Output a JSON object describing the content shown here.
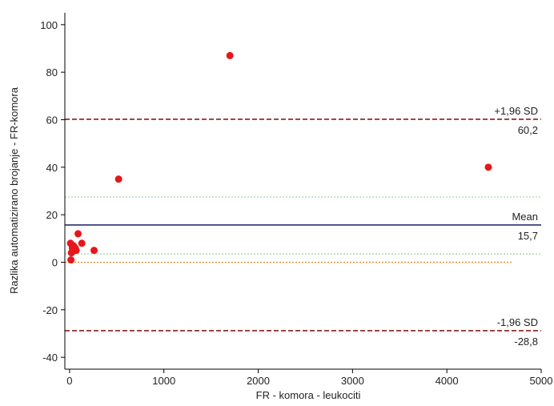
{
  "chart_data": {
    "type": "scatter",
    "title": "",
    "xlabel": "FR - komora - leukociti",
    "ylabel": "Razlika  automatizirano brojanje - FR-komora",
    "xlim": [
      -50,
      5000
    ],
    "ylim": [
      -45,
      105
    ],
    "xticks": [
      0,
      1000,
      2000,
      3000,
      4000,
      5000
    ],
    "yticks": [
      -40,
      -20,
      0,
      20,
      40,
      60,
      80,
      100
    ],
    "grid": false,
    "points": [
      {
        "x": 10,
        "y": 8
      },
      {
        "x": 20,
        "y": 4
      },
      {
        "x": 30,
        "y": 6
      },
      {
        "x": 40,
        "y": 7
      },
      {
        "x": 50,
        "y": 5
      },
      {
        "x": 60,
        "y": 6
      },
      {
        "x": 70,
        "y": 5
      },
      {
        "x": 90,
        "y": 12
      },
      {
        "x": 130,
        "y": 8
      },
      {
        "x": 260,
        "y": 5
      },
      {
        "x": 15,
        "y": 1
      },
      {
        "x": 520,
        "y": 35
      },
      {
        "x": 1700,
        "y": 87
      },
      {
        "x": 4440,
        "y": 40
      }
    ],
    "point_color": "#e8151b",
    "reference_lines": [
      {
        "name": "upper-loa",
        "y": 60.2,
        "label_top": "+1,96 SD",
        "label_bottom": "60,2",
        "color": "#8b1a1a",
        "style": "dashed"
      },
      {
        "name": "mean",
        "y": 15.7,
        "label_top": "Mean",
        "label_bottom": "15,7",
        "color": "#2b2f6e",
        "style": "solid"
      },
      {
        "name": "lower-loa",
        "y": -28.8,
        "label_top": "-1,96 SD",
        "label_bottom": "-28,8",
        "color": "#8b1a1a",
        "style": "dashed"
      },
      {
        "name": "ci-upper",
        "y": 27.5,
        "color": "#9ed39e",
        "style": "dotted"
      },
      {
        "name": "ci-lower",
        "y": 3.5,
        "color": "#9ed39e",
        "style": "dotted"
      },
      {
        "name": "zero",
        "y": 0,
        "x_end": 4700,
        "color": "#f0821e",
        "style": "dotted"
      }
    ]
  }
}
